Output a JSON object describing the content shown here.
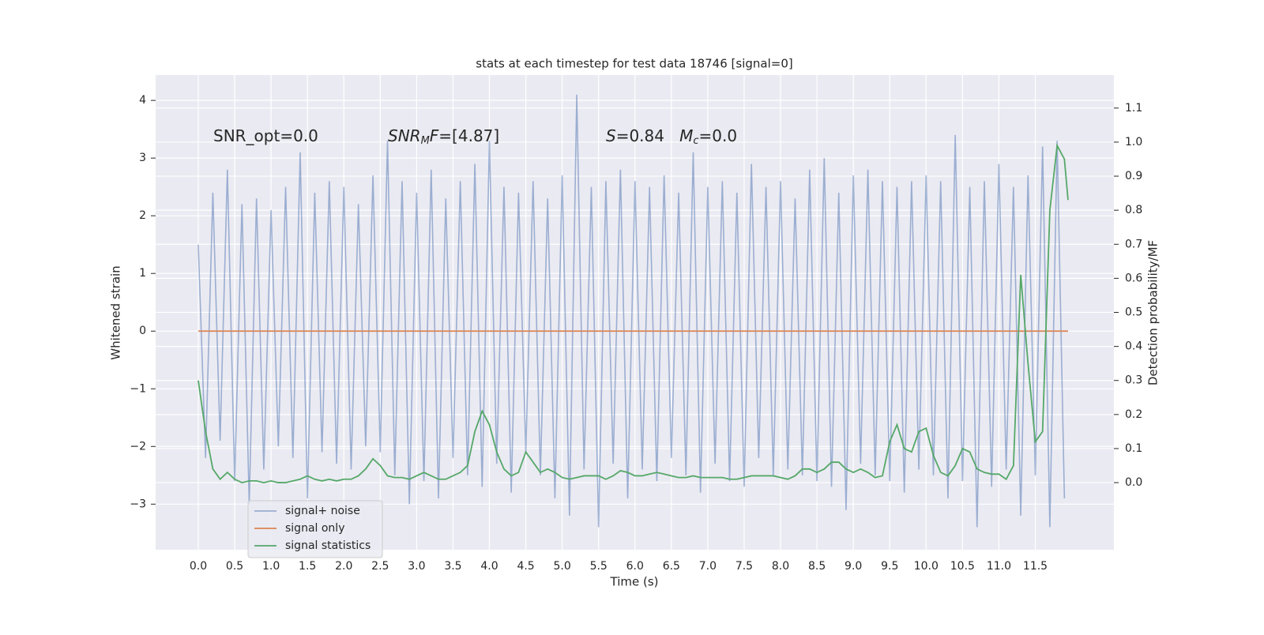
{
  "chart_data": {
    "type": "line",
    "title": "stats at each timestep for test data 18746 [signal=0]",
    "x_label": "Time (s)",
    "y_label": "Whitened strain",
    "y2_label": "Detection probability/MF",
    "annotations": [
      [
        {
          "text": "SNR_opt=0.0",
          "style": "normal"
        }
      ],
      [
        {
          "text": "SNR",
          "style": "italic"
        },
        {
          "text": "M",
          "style": "sub"
        },
        {
          "text": "F",
          "style": "italic"
        },
        {
          "text": "=[4.87]",
          "style": "normal"
        }
      ],
      [
        {
          "text": "S",
          "style": "italic"
        },
        {
          "text": "=0.84   ",
          "style": "normal"
        },
        {
          "text": "M",
          "style": "italic"
        },
        {
          "text": "c",
          "style": "sub"
        },
        {
          "text": "=0.0",
          "style": "normal"
        }
      ]
    ],
    "xlim": [
      -0.586,
      12.58
    ],
    "ylim": [
      -3.79,
      4.44
    ],
    "y2lim": [
      -0.197,
      1.197
    ],
    "xticks": [
      {
        "value": 0,
        "label": "0.0"
      },
      0.5,
      {
        "value": 1,
        "label": "1.0"
      },
      1.5,
      {
        "value": 2,
        "label": "2.0"
      },
      2.5,
      {
        "value": 3,
        "label": "3.0"
      },
      3.5,
      {
        "value": 4,
        "label": "4.0"
      },
      4.5,
      {
        "value": 5,
        "label": "5.0"
      },
      5.5,
      {
        "value": 6,
        "label": "6.0"
      },
      6.5,
      {
        "value": 7,
        "label": "7.0"
      },
      7.5,
      {
        "value": 8,
        "label": "8.0"
      },
      8.5,
      {
        "value": 9,
        "label": "9.0"
      },
      9.5,
      {
        "value": 10,
        "label": "10.0"
      },
      10.5,
      {
        "value": 11,
        "label": "11.0"
      },
      11.5
    ],
    "yticks": [
      {
        "value": -3,
        "label": "−3"
      },
      {
        "value": -2,
        "label": "−2"
      },
      {
        "value": -1,
        "label": "−1"
      },
      0,
      1,
      2,
      3,
      4
    ],
    "y2ticks": [
      {
        "value": 0,
        "label": "0.0"
      },
      0.1,
      0.2,
      0.3,
      0.4,
      0.5,
      0.6,
      0.7,
      0.8,
      0.9,
      {
        "value": 1,
        "label": "1.0"
      },
      1.1
    ],
    "grid": true,
    "legend": "lower left",
    "series": [
      {
        "name": "signal+ noise",
        "color": "#4c72b0",
        "opacity": 0.5,
        "x": [
          0,
          0.1,
          0.2,
          0.3,
          0.4,
          0.5,
          0.6,
          0.7,
          0.8,
          0.9,
          1,
          1.1,
          1.2,
          1.3,
          1.4,
          1.5,
          1.6,
          1.7,
          1.8,
          1.9,
          2,
          2.1,
          2.2,
          2.3,
          2.4,
          2.5,
          2.6,
          2.7,
          2.8,
          2.9,
          3,
          3.1,
          3.2,
          3.3,
          3.4,
          3.5,
          3.6,
          3.7,
          3.8,
          3.9,
          4,
          4.1,
          4.2,
          4.3,
          4.4,
          4.5,
          4.6,
          4.7,
          4.8,
          4.9,
          5,
          5.1,
          5.2,
          5.3,
          5.4,
          5.5,
          5.6,
          5.7,
          5.8,
          5.9,
          6,
          6.1,
          6.2,
          6.3,
          6.4,
          6.5,
          6.6,
          6.7,
          6.8,
          6.9,
          7,
          7.1,
          7.2,
          7.3,
          7.4,
          7.5,
          7.6,
          7.7,
          7.8,
          7.9,
          8,
          8.1,
          8.2,
          8.3,
          8.4,
          8.5,
          8.6,
          8.7,
          8.8,
          8.9,
          9,
          9.1,
          9.2,
          9.3,
          9.4,
          9.5,
          9.6,
          9.7,
          9.8,
          9.9,
          10,
          10.1,
          10.2,
          10.3,
          10.4,
          10.5,
          10.6,
          10.7,
          10.8,
          10.9,
          11,
          11.1,
          11.2,
          11.3,
          11.4,
          11.5,
          11.6,
          11.7,
          11.8,
          11.9
        ],
        "values": [
          1.5,
          -2.2,
          2.4,
          -1.9,
          2.8,
          -2.6,
          2.2,
          -3.0,
          2.3,
          -2.4,
          2.1,
          -2.0,
          2.5,
          -2.2,
          3.1,
          -2.9,
          2.4,
          -2.1,
          2.6,
          -2.3,
          2.5,
          -2.4,
          2.2,
          -2.0,
          2.7,
          -2.1,
          3.3,
          -2.5,
          2.6,
          -3.0,
          2.4,
          -2.6,
          2.8,
          -2.9,
          2.3,
          -2.2,
          2.6,
          -2.5,
          2.9,
          -2.7,
          3.3,
          -2.3,
          2.5,
          -2.8,
          2.4,
          -2.1,
          2.6,
          -2.5,
          2.3,
          -2.9,
          2.7,
          -3.2,
          4.1,
          -2.4,
          2.5,
          -3.4,
          2.6,
          -2.3,
          2.8,
          -2.9,
          2.6,
          -2.4,
          2.5,
          -2.6,
          2.7,
          -2.2,
          2.4,
          -2.5,
          3.1,
          -2.8,
          2.5,
          -2.3,
          2.6,
          -2.6,
          2.4,
          -2.7,
          2.9,
          -2.2,
          2.5,
          -2.5,
          2.6,
          -2.4,
          2.3,
          -2.5,
          2.8,
          -2.6,
          3.0,
          -2.7,
          2.4,
          -3.1,
          2.7,
          -2.3,
          2.8,
          -2.5,
          2.6,
          -2.6,
          2.5,
          -2.8,
          2.6,
          -2.4,
          2.7,
          -2.5,
          2.6,
          -2.9,
          3.4,
          -2.6,
          2.5,
          -3.4,
          2.6,
          -2.7,
          2.9,
          -2.4,
          2.5,
          -3.2,
          2.7,
          -2.5,
          3.2,
          -3.4,
          3.3,
          -2.9
        ]
      },
      {
        "name": "signal only",
        "color": "#dd8452",
        "opacity": 1,
        "x": [
          0,
          11.95
        ],
        "values": [
          0,
          0
        ]
      },
      {
        "name": "signal statistics",
        "color": "#55a868",
        "opacity": 1,
        "axis": "y2",
        "x": [
          0,
          0.1,
          0.2,
          0.3,
          0.4,
          0.5,
          0.6,
          0.7,
          0.8,
          0.9,
          1,
          1.1,
          1.2,
          1.3,
          1.4,
          1.5,
          1.6,
          1.7,
          1.8,
          1.9,
          2,
          2.1,
          2.2,
          2.3,
          2.4,
          2.5,
          2.6,
          2.7,
          2.8,
          2.9,
          3,
          3.1,
          3.2,
          3.3,
          3.4,
          3.5,
          3.6,
          3.7,
          3.8,
          3.9,
          4,
          4.1,
          4.2,
          4.3,
          4.4,
          4.5,
          4.6,
          4.7,
          4.8,
          4.9,
          5,
          5.1,
          5.2,
          5.3,
          5.4,
          5.5,
          5.6,
          5.7,
          5.8,
          5.9,
          6,
          6.1,
          6.2,
          6.3,
          6.4,
          6.5,
          6.6,
          6.7,
          6.8,
          6.9,
          7,
          7.1,
          7.2,
          7.3,
          7.4,
          7.5,
          7.6,
          7.7,
          7.8,
          7.9,
          8,
          8.1,
          8.2,
          8.3,
          8.4,
          8.5,
          8.6,
          8.7,
          8.8,
          8.9,
          9,
          9.1,
          9.2,
          9.3,
          9.4,
          9.5,
          9.6,
          9.7,
          9.8,
          9.9,
          10,
          10.1,
          10.2,
          10.3,
          10.4,
          10.5,
          10.6,
          10.7,
          10.8,
          10.9,
          11,
          11.1,
          11.2,
          11.3,
          11.4,
          11.5,
          11.6,
          11.7,
          11.8,
          11.9,
          11.95
        ],
        "values": [
          0.3,
          0.15,
          0.04,
          0.01,
          0.03,
          0.01,
          0.0,
          0.005,
          0.005,
          0.0,
          0.005,
          0.0,
          0.0,
          0.005,
          0.01,
          0.02,
          0.01,
          0.005,
          0.01,
          0.005,
          0.01,
          0.01,
          0.02,
          0.04,
          0.07,
          0.05,
          0.02,
          0.015,
          0.015,
          0.01,
          0.02,
          0.03,
          0.02,
          0.01,
          0.01,
          0.02,
          0.03,
          0.05,
          0.15,
          0.21,
          0.17,
          0.09,
          0.04,
          0.02,
          0.03,
          0.09,
          0.06,
          0.03,
          0.04,
          0.03,
          0.015,
          0.01,
          0.015,
          0.02,
          0.02,
          0.02,
          0.01,
          0.02,
          0.035,
          0.03,
          0.02,
          0.02,
          0.025,
          0.03,
          0.025,
          0.02,
          0.015,
          0.015,
          0.02,
          0.015,
          0.015,
          0.015,
          0.015,
          0.01,
          0.01,
          0.015,
          0.02,
          0.02,
          0.02,
          0.02,
          0.015,
          0.01,
          0.02,
          0.04,
          0.04,
          0.03,
          0.04,
          0.06,
          0.06,
          0.04,
          0.03,
          0.04,
          0.03,
          0.015,
          0.02,
          0.12,
          0.17,
          0.1,
          0.09,
          0.15,
          0.16,
          0.08,
          0.03,
          0.02,
          0.05,
          0.1,
          0.09,
          0.04,
          0.03,
          0.025,
          0.025,
          0.01,
          0.05,
          0.61,
          0.35,
          0.12,
          0.15,
          0.8,
          0.99,
          0.95,
          0.83
        ]
      }
    ]
  }
}
